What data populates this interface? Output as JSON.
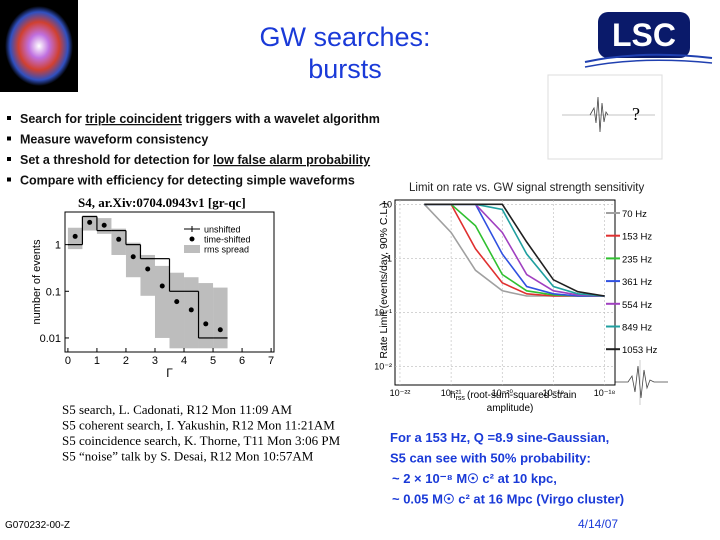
{
  "header": {
    "title_line1": "GW searches:",
    "title_line2": "bursts",
    "logo": "LSC",
    "question": "?"
  },
  "bullets": [
    {
      "parts": [
        "Search for ",
        "triple coincident",
        " triggers with a wavelet algorithm"
      ],
      "underlined": [
        1
      ]
    },
    {
      "parts": [
        "Measure waveform consistency"
      ],
      "underlined": []
    },
    {
      "parts": [
        "Set a threshold for detection for ",
        "low false alarm probability"
      ],
      "underlined": [
        1
      ]
    },
    {
      "parts": [
        "Compare with efficiency for detecting simple waveforms"
      ],
      "underlined": []
    }
  ],
  "rate_caption": "Limit on rate vs. GW signal strength sensitivity",
  "reference": "S4, ar.Xiv:0704.0943v1 [gr-qc]",
  "talks": [
    "S5 search, L. Cadonati, R12 Mon 11:09 AM",
    "S5 coherent search, I. Yakushin, R12 Mon 11:21AM",
    "S5 coincidence search, K. Thorne, T11 Mon 3:06 PM",
    "S5 “noise” talk by S. Desai, R12 Mon 10:57AM"
  ],
  "result": [
    "For a 153 Hz, Q =8.9 sine-Gaussian,",
    "S5 can see with 50% probability:",
    "~ 2 × 10⁻⁸ M☉ c² at 10 kpc,",
    "~ 0.05 M☉ c² at 16 Mpc  (Virgo cluster)"
  ],
  "footer": {
    "id": "G070232-00-Z",
    "date": "4/14/07"
  },
  "chart_data": [
    {
      "type": "histogram",
      "x_label": "Γ",
      "y_label": "number of events",
      "bins": [
        0,
        0.5,
        1,
        1.5,
        2,
        2.5,
        3,
        3.5,
        4,
        4.5,
        5,
        5.5
      ],
      "xlim": [
        -0.1,
        7.1
      ],
      "xticks": [
        0,
        1,
        2,
        3,
        4,
        5,
        6,
        7
      ],
      "ylim": [
        0.005,
        5
      ],
      "yticks": [
        0.01,
        0.1,
        1
      ],
      "log_y": true,
      "series": [
        {
          "name": "unshifted",
          "color": "#000000",
          "values": [
            1,
            4,
            2,
            2,
            1,
            0.5,
            0.5,
            0.1,
            0.1,
            0.01,
            0.01
          ]
        },
        {
          "name": "time-shifted",
          "color": "#000000",
          "values": [
            1.5,
            3.0,
            2.6,
            1.3,
            0.55,
            0.3,
            0.13,
            0.06,
            0.04,
            0.02,
            0.015
          ]
        },
        {
          "name": "rms spread",
          "color": "#bdbdbd",
          "low": [
            0.8,
            2.0,
            1.7,
            0.6,
            0.2,
            0.08,
            0.01,
            0.006,
            0.006,
            0.006,
            0.006
          ],
          "high": [
            2.3,
            4.2,
            3.7,
            2.2,
            1.1,
            0.6,
            0.35,
            0.25,
            0.2,
            0.15,
            0.12
          ]
        }
      ]
    },
    {
      "type": "line",
      "y_label": "Rate Limit (events/day, 90% C.L.)",
      "x_label": {
        "symbol": "h",
        "subscript": "rss",
        "line1": "(root-sum-squared strain",
        "line2": "amplitude)"
      },
      "log_x": true,
      "log_y": true,
      "xlim": [
        8e-23,
        1.6e-18
      ],
      "xticks": [
        {
          "value": 1e-22,
          "label": "10⁻²²"
        },
        {
          "value": 1e-21,
          "label": "10⁻²¹"
        },
        {
          "value": 1e-20,
          "label": "10⁻²⁰"
        },
        {
          "value": 1e-19,
          "label": "10⁻¹⁹"
        },
        {
          "value": 1e-18,
          "label": "10⁻¹⁸"
        }
      ],
      "ylim": [
        0.0045,
        12
      ],
      "yticks": [
        10,
        1,
        {
          "value": 0.1,
          "label": "10⁻¹"
        },
        {
          "value": 0.01,
          "label": "10⁻²"
        }
      ],
      "x": [
        3e-22,
        1e-21,
        3e-21,
        1e-20,
        3e-20,
        1e-19,
        3e-19,
        1e-18
      ],
      "series": [
        {
          "name": "70 Hz",
          "color": "#a0a0a0",
          "values": [
            10,
            3,
            0.6,
            0.25,
            0.2,
            0.2,
            0.2,
            0.2
          ]
        },
        {
          "name": "153 Hz",
          "color": "#e03030",
          "values": [
            10,
            10,
            1.5,
            0.35,
            0.22,
            0.2,
            0.2,
            0.2
          ]
        },
        {
          "name": "235 Hz",
          "color": "#30c030",
          "values": [
            10,
            10,
            4,
            0.5,
            0.25,
            0.21,
            0.2,
            0.2
          ]
        },
        {
          "name": "361 Hz",
          "color": "#3050e0",
          "values": [
            10,
            10,
            10,
            1.2,
            0.3,
            0.22,
            0.2,
            0.2
          ]
        },
        {
          "name": "554 Hz",
          "color": "#a040c0",
          "values": [
            10,
            10,
            10,
            3,
            0.5,
            0.25,
            0.21,
            0.2
          ]
        },
        {
          "name": "849 Hz",
          "color": "#20a0a0",
          "values": [
            10,
            10,
            10,
            8,
            1.2,
            0.3,
            0.22,
            0.2
          ]
        },
        {
          "name": "1053 Hz",
          "color": "#202020",
          "values": [
            10,
            10,
            10,
            10,
            2,
            0.4,
            0.24,
            0.2
          ]
        }
      ]
    }
  ]
}
